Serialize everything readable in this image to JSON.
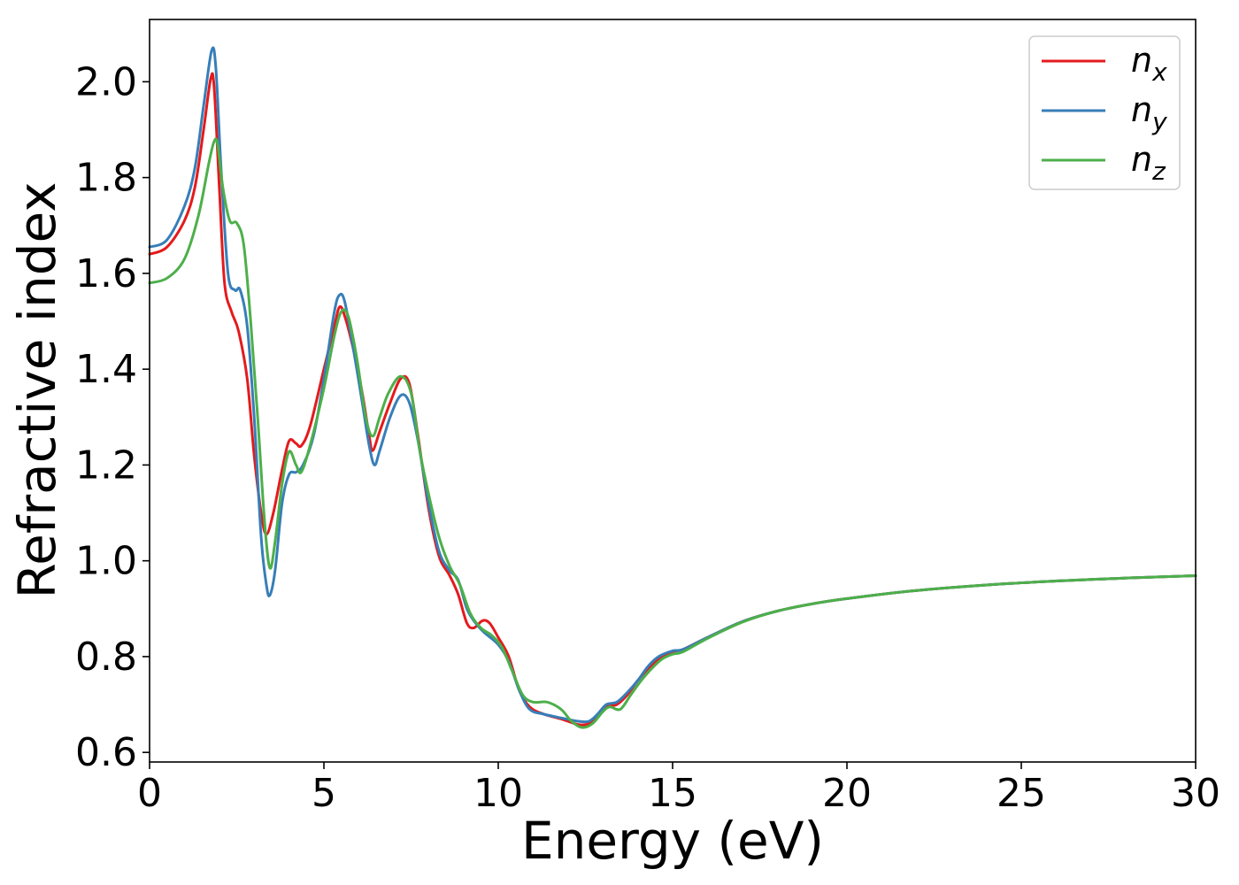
{
  "chart_data": {
    "type": "line",
    "title": "",
    "xlabel": "Energy (eV)",
    "ylabel": "Refractive index",
    "xlim": [
      0,
      30
    ],
    "ylim": [
      0.58,
      2.13
    ],
    "xticks": [
      0,
      5,
      10,
      15,
      20,
      25,
      30
    ],
    "yticks": [
      0.6,
      0.8,
      1.0,
      1.2,
      1.4,
      1.6,
      1.8,
      2.0
    ],
    "grid": false,
    "legend": {
      "placement": "top-right"
    },
    "series": [
      {
        "name": "n_x",
        "label_base": "n",
        "label_sub": "x",
        "color": "#e41a1c",
        "points": [
          [
            0,
            1.64
          ],
          [
            0.5,
            1.655
          ],
          [
            1.0,
            1.71
          ],
          [
            1.3,
            1.78
          ],
          [
            1.55,
            1.9
          ],
          [
            1.75,
            2.005
          ],
          [
            1.85,
            1.99
          ],
          [
            2.0,
            1.78
          ],
          [
            2.15,
            1.58
          ],
          [
            2.35,
            1.52
          ],
          [
            2.55,
            1.48
          ],
          [
            2.8,
            1.38
          ],
          [
            3.0,
            1.22
          ],
          [
            3.2,
            1.1
          ],
          [
            3.35,
            1.055
          ],
          [
            3.55,
            1.1
          ],
          [
            3.8,
            1.19
          ],
          [
            4.0,
            1.25
          ],
          [
            4.2,
            1.245
          ],
          [
            4.35,
            1.24
          ],
          [
            4.6,
            1.28
          ],
          [
            5.0,
            1.4
          ],
          [
            5.3,
            1.49
          ],
          [
            5.45,
            1.53
          ],
          [
            5.6,
            1.51
          ],
          [
            5.85,
            1.44
          ],
          [
            6.1,
            1.35
          ],
          [
            6.3,
            1.26
          ],
          [
            6.4,
            1.23
          ],
          [
            6.6,
            1.27
          ],
          [
            6.9,
            1.33
          ],
          [
            7.2,
            1.38
          ],
          [
            7.45,
            1.37
          ],
          [
            7.7,
            1.26
          ],
          [
            8.0,
            1.11
          ],
          [
            8.3,
            1.01
          ],
          [
            8.6,
            0.97
          ],
          [
            8.85,
            0.93
          ],
          [
            9.1,
            0.87
          ],
          [
            9.3,
            0.86
          ],
          [
            9.55,
            0.875
          ],
          [
            9.75,
            0.87
          ],
          [
            10.0,
            0.84
          ],
          [
            10.3,
            0.8
          ],
          [
            10.6,
            0.73
          ],
          [
            10.9,
            0.695
          ],
          [
            11.3,
            0.68
          ],
          [
            11.8,
            0.67
          ],
          [
            12.3,
            0.658
          ],
          [
            12.6,
            0.66
          ],
          [
            12.85,
            0.675
          ],
          [
            13.1,
            0.695
          ],
          [
            13.4,
            0.7
          ],
          [
            13.7,
            0.72
          ],
          [
            14.0,
            0.75
          ],
          [
            14.3,
            0.775
          ],
          [
            14.6,
            0.795
          ],
          [
            15.0,
            0.81
          ],
          [
            15.3,
            0.815
          ],
          [
            16.0,
            0.84
          ],
          [
            17.0,
            0.873
          ],
          [
            18.0,
            0.895
          ],
          [
            19.0,
            0.91
          ],
          [
            20.0,
            0.921
          ],
          [
            22.0,
            0.938
          ],
          [
            25.0,
            0.954
          ],
          [
            28.0,
            0.964
          ],
          [
            30.0,
            0.969
          ]
        ]
      },
      {
        "name": "n_y",
        "label_base": "n",
        "label_sub": "y",
        "color": "#377eb8",
        "points": [
          [
            0,
            1.655
          ],
          [
            0.5,
            1.67
          ],
          [
            1.0,
            1.74
          ],
          [
            1.3,
            1.82
          ],
          [
            1.55,
            1.95
          ],
          [
            1.78,
            2.065
          ],
          [
            1.9,
            2.03
          ],
          [
            2.05,
            1.82
          ],
          [
            2.25,
            1.6
          ],
          [
            2.45,
            1.565
          ],
          [
            2.6,
            1.565
          ],
          [
            2.8,
            1.49
          ],
          [
            3.0,
            1.3
          ],
          [
            3.2,
            1.05
          ],
          [
            3.35,
            0.95
          ],
          [
            3.45,
            0.928
          ],
          [
            3.6,
            0.98
          ],
          [
            3.8,
            1.12
          ],
          [
            4.0,
            1.18
          ],
          [
            4.2,
            1.185
          ],
          [
            4.4,
            1.2
          ],
          [
            4.7,
            1.26
          ],
          [
            5.0,
            1.38
          ],
          [
            5.3,
            1.52
          ],
          [
            5.45,
            1.555
          ],
          [
            5.6,
            1.54
          ],
          [
            5.85,
            1.44
          ],
          [
            6.1,
            1.33
          ],
          [
            6.3,
            1.24
          ],
          [
            6.45,
            1.2
          ],
          [
            6.6,
            1.23
          ],
          [
            6.9,
            1.3
          ],
          [
            7.2,
            1.345
          ],
          [
            7.45,
            1.33
          ],
          [
            7.7,
            1.25
          ],
          [
            8.0,
            1.12
          ],
          [
            8.3,
            1.02
          ],
          [
            8.6,
            0.98
          ],
          [
            8.85,
            0.96
          ],
          [
            9.1,
            0.9
          ],
          [
            9.35,
            0.87
          ],
          [
            9.6,
            0.85
          ],
          [
            10.0,
            0.825
          ],
          [
            10.3,
            0.79
          ],
          [
            10.6,
            0.73
          ],
          [
            10.9,
            0.69
          ],
          [
            11.3,
            0.68
          ],
          [
            11.8,
            0.672
          ],
          [
            12.3,
            0.665
          ],
          [
            12.6,
            0.665
          ],
          [
            12.85,
            0.68
          ],
          [
            13.1,
            0.7
          ],
          [
            13.4,
            0.705
          ],
          [
            13.7,
            0.725
          ],
          [
            14.0,
            0.75
          ],
          [
            14.3,
            0.78
          ],
          [
            14.6,
            0.8
          ],
          [
            15.0,
            0.812
          ],
          [
            15.3,
            0.815
          ],
          [
            16.0,
            0.84
          ],
          [
            17.0,
            0.873
          ],
          [
            18.0,
            0.895
          ],
          [
            19.0,
            0.91
          ],
          [
            20.0,
            0.921
          ],
          [
            22.0,
            0.938
          ],
          [
            25.0,
            0.954
          ],
          [
            28.0,
            0.964
          ],
          [
            30.0,
            0.969
          ]
        ]
      },
      {
        "name": "n_z",
        "label_base": "n",
        "label_sub": "z",
        "color": "#4daf4a",
        "points": [
          [
            0,
            1.58
          ],
          [
            0.5,
            1.59
          ],
          [
            1.0,
            1.63
          ],
          [
            1.4,
            1.72
          ],
          [
            1.7,
            1.83
          ],
          [
            1.85,
            1.875
          ],
          [
            1.95,
            1.87
          ],
          [
            2.1,
            1.78
          ],
          [
            2.3,
            1.71
          ],
          [
            2.5,
            1.705
          ],
          [
            2.7,
            1.66
          ],
          [
            2.9,
            1.5
          ],
          [
            3.1,
            1.3
          ],
          [
            3.3,
            1.08
          ],
          [
            3.45,
            0.985
          ],
          [
            3.6,
            1.04
          ],
          [
            3.8,
            1.16
          ],
          [
            4.0,
            1.228
          ],
          [
            4.2,
            1.2
          ],
          [
            4.35,
            1.185
          ],
          [
            4.6,
            1.24
          ],
          [
            5.0,
            1.36
          ],
          [
            5.3,
            1.47
          ],
          [
            5.5,
            1.52
          ],
          [
            5.7,
            1.51
          ],
          [
            5.95,
            1.42
          ],
          [
            6.2,
            1.3
          ],
          [
            6.4,
            1.26
          ],
          [
            6.6,
            1.3
          ],
          [
            6.85,
            1.35
          ],
          [
            7.2,
            1.385
          ],
          [
            7.5,
            1.35
          ],
          [
            7.75,
            1.23
          ],
          [
            8.0,
            1.14
          ],
          [
            8.3,
            1.05
          ],
          [
            8.6,
            0.99
          ],
          [
            8.9,
            0.95
          ],
          [
            9.2,
            0.89
          ],
          [
            9.5,
            0.86
          ],
          [
            9.8,
            0.845
          ],
          [
            10.1,
            0.82
          ],
          [
            10.4,
            0.77
          ],
          [
            10.7,
            0.72
          ],
          [
            11.0,
            0.705
          ],
          [
            11.4,
            0.705
          ],
          [
            11.8,
            0.69
          ],
          [
            12.1,
            0.665
          ],
          [
            12.4,
            0.652
          ],
          [
            12.7,
            0.66
          ],
          [
            13.0,
            0.685
          ],
          [
            13.2,
            0.695
          ],
          [
            13.5,
            0.69
          ],
          [
            13.8,
            0.72
          ],
          [
            14.1,
            0.75
          ],
          [
            14.4,
            0.775
          ],
          [
            14.7,
            0.795
          ],
          [
            15.0,
            0.805
          ],
          [
            15.3,
            0.81
          ],
          [
            16.0,
            0.838
          ],
          [
            17.0,
            0.872
          ],
          [
            18.0,
            0.895
          ],
          [
            19.0,
            0.91
          ],
          [
            20.0,
            0.921
          ],
          [
            22.0,
            0.938
          ],
          [
            25.0,
            0.954
          ],
          [
            28.0,
            0.964
          ],
          [
            30.0,
            0.969
          ]
        ]
      }
    ]
  }
}
